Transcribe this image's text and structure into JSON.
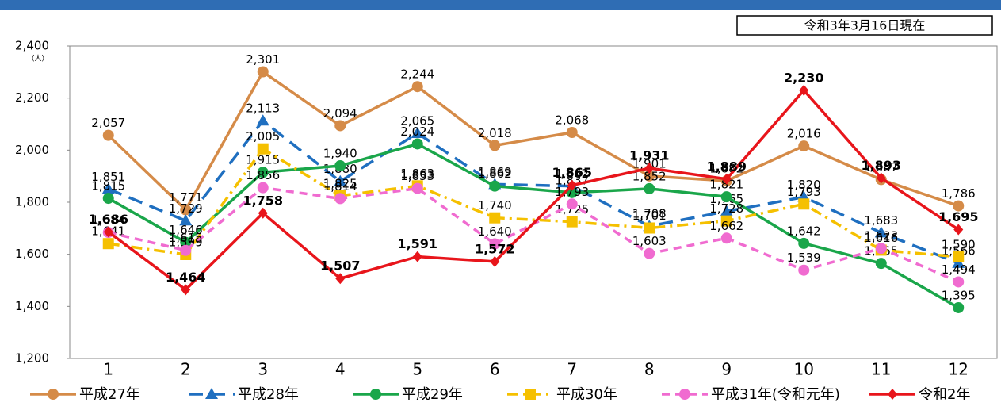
{
  "chart_data": {
    "type": "line",
    "annotation": "令和3年3月16日現在",
    "y_unit": "（人）",
    "categories": [
      "1",
      "2",
      "3",
      "4",
      "5",
      "6",
      "7",
      "8",
      "9",
      "10",
      "11",
      "12"
    ],
    "ylim": [
      1200,
      2400
    ],
    "yticks": [
      {
        "value": 1200,
        "label": "1,200"
      },
      {
        "value": 1400,
        "label": "1,400"
      },
      {
        "value": 1600,
        "label": "1,600"
      },
      {
        "value": 1800,
        "label": "1,800"
      },
      {
        "value": 2000,
        "label": "2,000"
      },
      {
        "value": 2200,
        "label": "2,200"
      },
      {
        "value": 2400,
        "label": "2,400"
      }
    ],
    "grid": false,
    "legend": "bottom",
    "series": [
      {
        "name": "平成27年",
        "color": "#d58b48",
        "marker": "circle",
        "dash": "solid",
        "values": [
          2057,
          1771,
          2301,
          2094,
          2244,
          2018,
          2068,
          1901,
          1882,
          2016,
          1887,
          1786
        ],
        "value_labels": [
          "2,057",
          "1,771",
          "2,301",
          "2,094",
          "2,244",
          "2,018",
          "2,068",
          "1,901",
          "1,882",
          "2,016",
          "1,887",
          "1,786"
        ]
      },
      {
        "name": "平成28年",
        "color": "#1f6fc0",
        "marker": "triangle",
        "dash": "longdash",
        "values": [
          1851,
          1729,
          2113,
          1880,
          2065,
          1869,
          1862,
          1708,
          1765,
          1820,
          1683,
          1566
        ],
        "value_labels": [
          "1,851",
          "1,729",
          "2,113",
          "1,880",
          "2,065",
          "1,869",
          "1,862",
          "1,708",
          "1,765",
          "1,820",
          "1,683",
          "1,566"
        ]
      },
      {
        "name": "平成29年",
        "color": "#1aa64a",
        "marker": "circle",
        "dash": "solid",
        "values": [
          1815,
          1646,
          1915,
          1940,
          2024,
          1862,
          1837,
          1852,
          1821,
          1642,
          1565,
          1395
        ],
        "value_labels": [
          "1,815",
          "1,646",
          "1,915",
          "1,940",
          "2,024",
          "1,862",
          "1,837",
          "1,852",
          "1,821",
          "1,642",
          "1,565",
          "1,395"
        ]
      },
      {
        "name": "平成30年",
        "color": "#f5c000",
        "marker": "square",
        "dash": "dashdot",
        "values": [
          1641,
          1599,
          2005,
          1825,
          1863,
          1740,
          1725,
          1701,
          1728,
          1793,
          1616,
          1590
        ],
        "value_labels": [
          "1,641",
          "1,599",
          "2,005",
          "1,825",
          "1,863",
          "1,740",
          "1,725",
          "1,701",
          "1,728",
          "1,793",
          "1,616",
          "1,590"
        ]
      },
      {
        "name": "平成31年(令和元年)",
        "color": "#f06bd0",
        "marker": "circle",
        "dash": "dash",
        "values": [
          1684,
          1615,
          1856,
          1814,
          1853,
          1640,
          1793,
          1603,
          1662,
          1539,
          1623,
          1494
        ],
        "value_labels": [
          "1,684",
          "1,615",
          "1,856",
          "1,814",
          "1,853",
          "1,640",
          "1,793",
          "1,603",
          "1,662",
          "1,539",
          "1,623",
          "1,494"
        ]
      },
      {
        "name": "令和2年",
        "color": "#e8151b",
        "marker": "diamond",
        "dash": "solid",
        "bold_labels": true,
        "values": [
          1686,
          1464,
          1758,
          1507,
          1591,
          1572,
          1865,
          1931,
          1889,
          2230,
          1893,
          1695
        ],
        "value_labels": [
          "1,686",
          "1,464",
          "1,758",
          "1,507",
          "1,591",
          "1,572",
          "1,865",
          "1,931",
          "1,889",
          "2,230",
          "1,893",
          "1,695"
        ]
      }
    ]
  }
}
